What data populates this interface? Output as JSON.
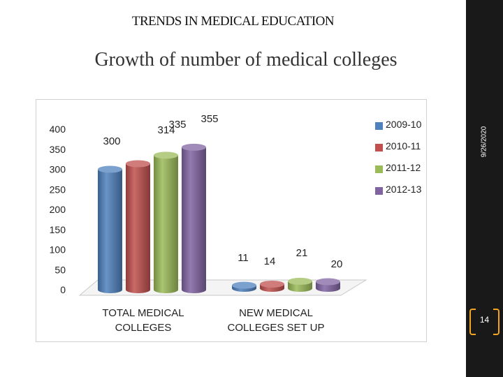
{
  "slide": {
    "heading": "TRENDS IN MEDICAL EDUCATION",
    "subtitle": "Growth of number of medical colleges",
    "date": "9/26/2020",
    "page_number": "14",
    "accent_color": "#f2a51f",
    "band_color": "#191919"
  },
  "chart_data": {
    "type": "bar",
    "title": "",
    "xlabel": "",
    "ylabel": "",
    "categories": [
      "TOTAL MEDICAL COLLEGES",
      "NEW MEDICAL COLLEGES SET UP"
    ],
    "category_lines": [
      [
        "TOTAL MEDICAL",
        "COLLEGES"
      ],
      [
        "NEW MEDICAL",
        "COLLEGES SET UP"
      ]
    ],
    "series": [
      {
        "name": "2009-10",
        "values": [
          300,
          11
        ],
        "color": "#4f81bd"
      },
      {
        "name": "2010-11",
        "values": [
          314,
          14
        ],
        "color": "#c0504d"
      },
      {
        "name": "2011-12",
        "values": [
          335,
          21
        ],
        "color": "#9bbb59"
      },
      {
        "name": "2012-13",
        "values": [
          355,
          20
        ],
        "color": "#8064a2"
      }
    ],
    "ylim": [
      0,
      400
    ],
    "yticks": [
      0,
      50,
      100,
      150,
      200,
      250,
      300,
      350,
      400
    ],
    "grid": false,
    "legend_position": "top-right",
    "style": "3d-cylinder"
  }
}
